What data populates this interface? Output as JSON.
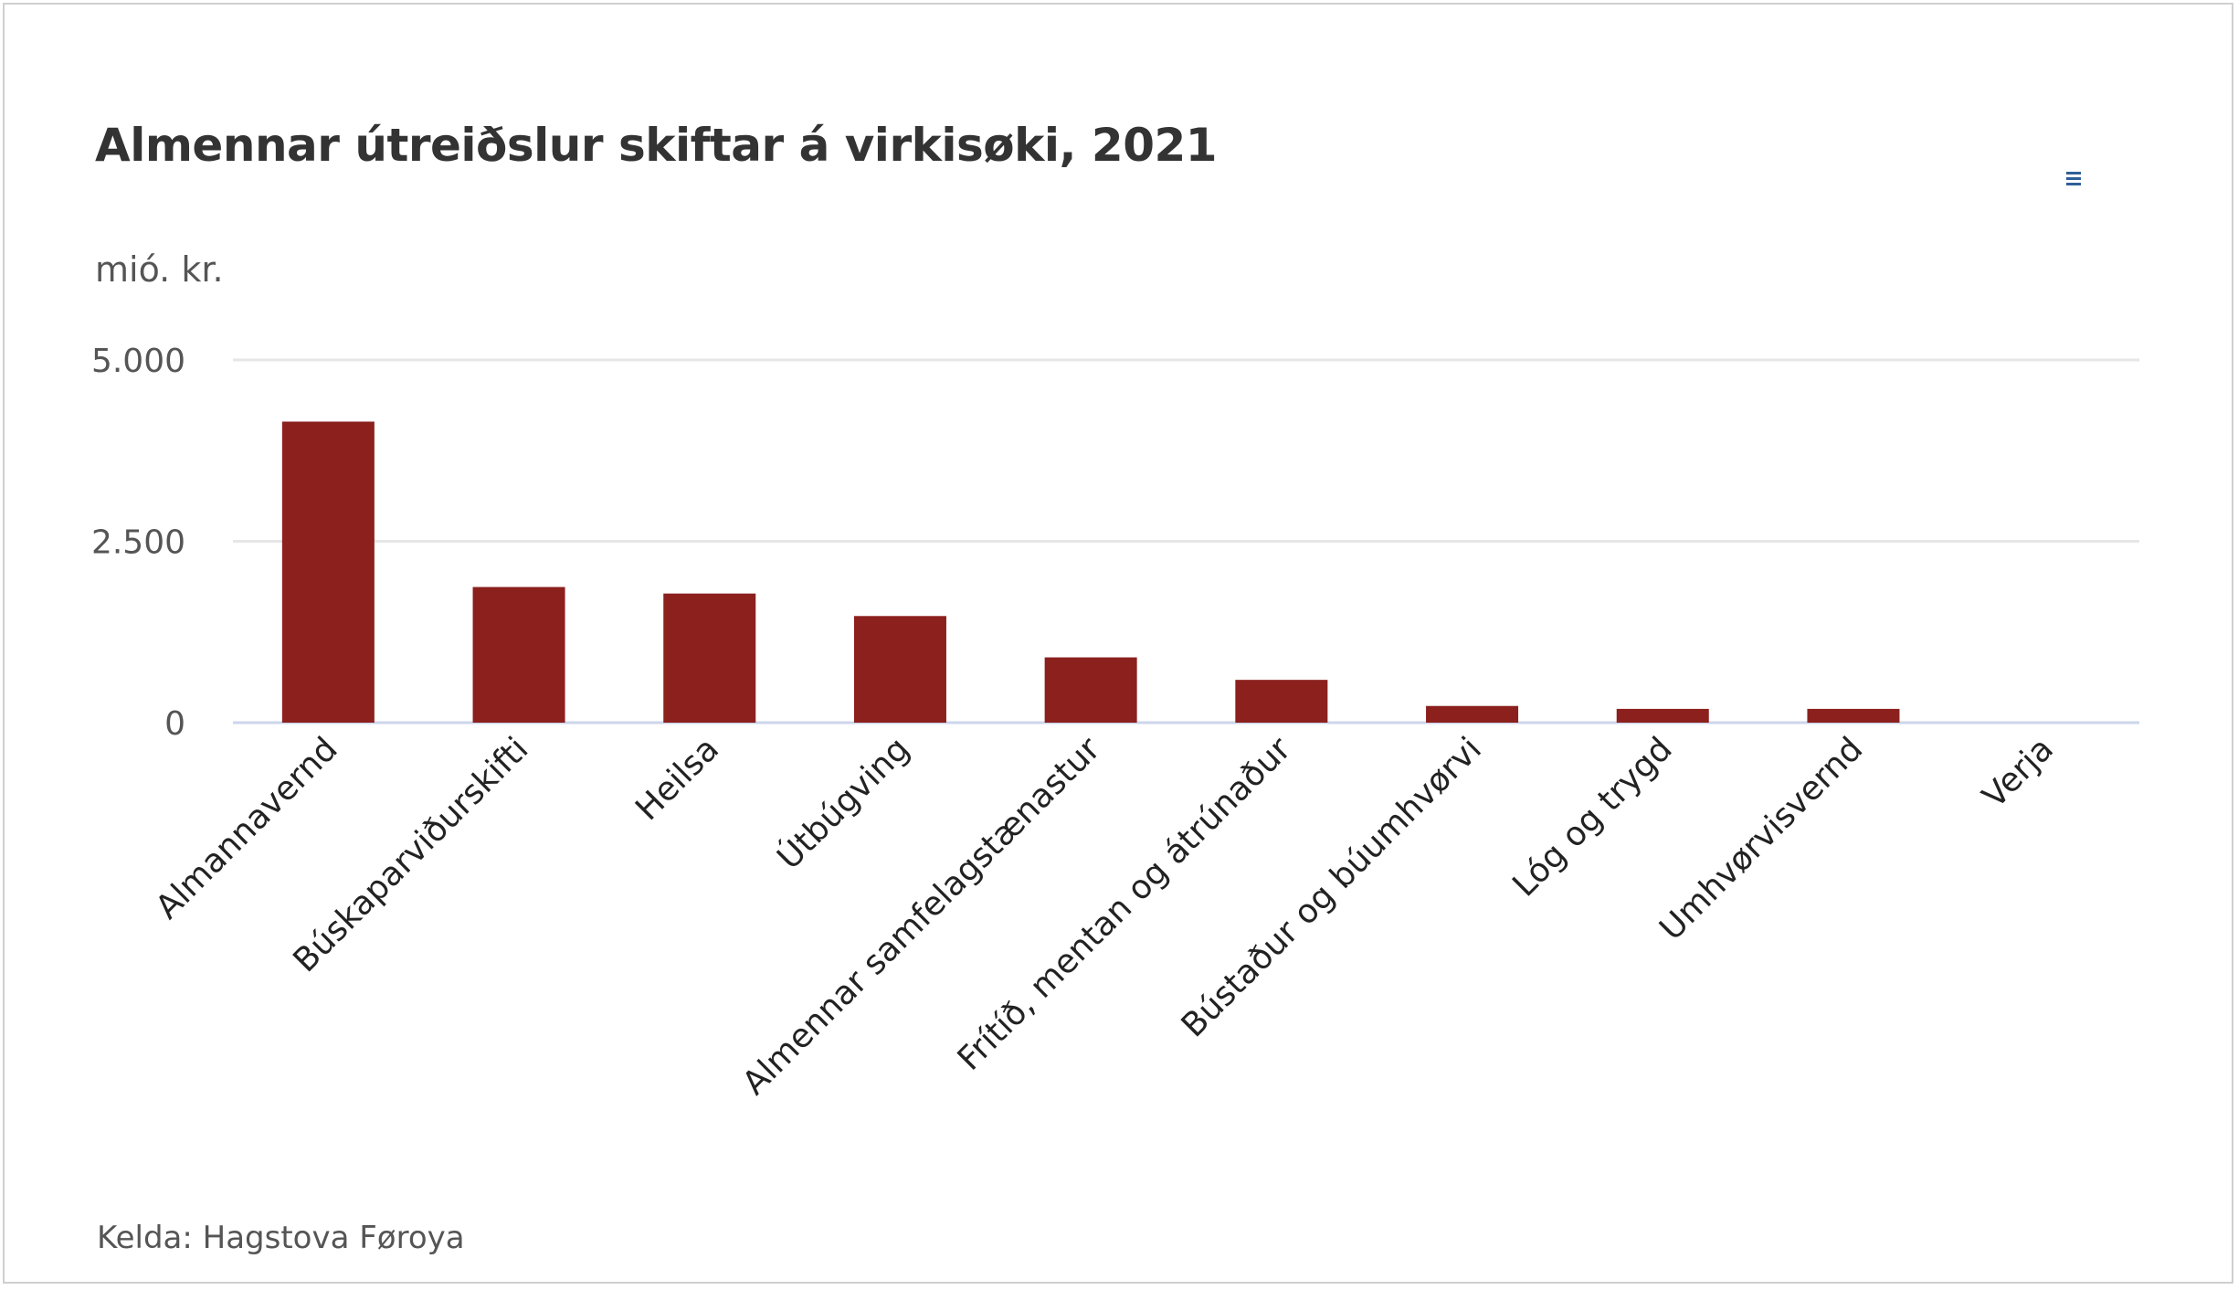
{
  "title": "Almennar útreiðslur skiftar á virkisøki, 2021",
  "unit_label": "mió. kr.",
  "source": "Kelda: Hagstova Føroya",
  "menu_icon": "hamburger-menu-icon",
  "colors": {
    "bar": "#8b201d",
    "grid": "#e6e6e6",
    "axis": "#ccd6eb",
    "menu": "#2f5f98"
  },
  "chart_data": {
    "type": "bar",
    "title": "Almennar útreiðslur skiftar á virkisøki, 2021",
    "ylabel": "mió. kr.",
    "xlabel": "",
    "ylim": [
      0,
      5000
    ],
    "yticks": [
      0,
      2500,
      5000
    ],
    "ytick_labels": [
      "0",
      "2.500",
      "5.000"
    ],
    "grid": true,
    "legend": "none",
    "categories": [
      "Almannavernd",
      "Búskaparviðurskifti",
      "Heilsa",
      "Útbúgving",
      "Almennar samfelagstænastur",
      "Frítíð, mentan og átrúnaður",
      "Bústaður og búumhvørvi",
      "Lóg og trygd",
      "Umhvørvisvernd",
      "Verja"
    ],
    "values": [
      4150,
      1870,
      1780,
      1470,
      900,
      590,
      230,
      190,
      190,
      0
    ]
  }
}
